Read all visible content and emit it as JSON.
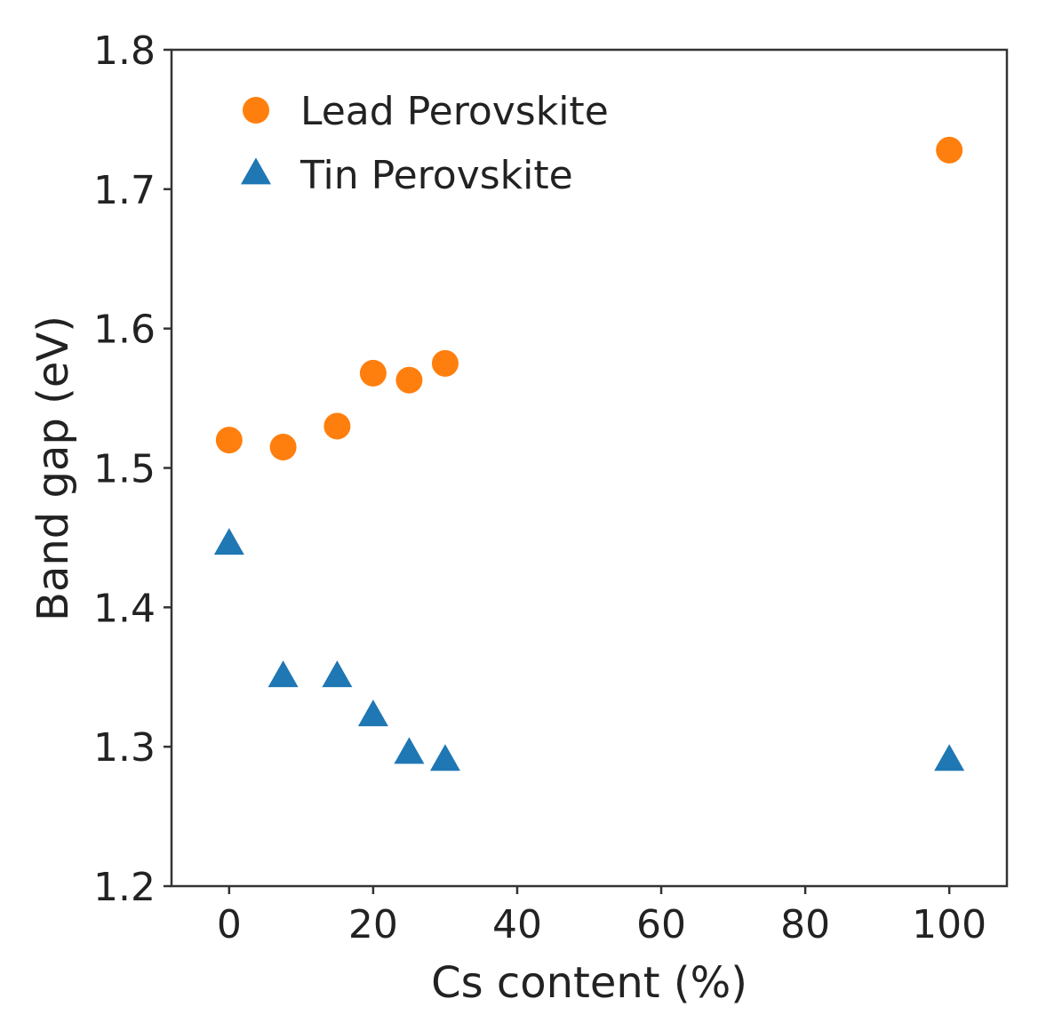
{
  "chart_data": {
    "type": "scatter",
    "xlabel": "Cs content (%)",
    "ylabel": "Band gap (eV)",
    "xlim": [
      -8,
      108
    ],
    "ylim": [
      1.2,
      1.8
    ],
    "xticks": [
      0,
      20,
      40,
      60,
      80,
      100
    ],
    "xtick_labels": [
      "0",
      "20",
      "40",
      "60",
      "80",
      "100"
    ],
    "yticks": [
      1.2,
      1.3,
      1.4,
      1.5,
      1.6,
      1.7,
      1.8
    ],
    "ytick_labels": [
      "1.2",
      "1.3",
      "1.4",
      "1.5",
      "1.6",
      "1.7",
      "1.8"
    ],
    "grid": false,
    "legend": {
      "placement": "top-left"
    },
    "series": [
      {
        "name": "Lead Perovskite",
        "marker": "circle",
        "color": "#ff7f0e",
        "x": [
          0,
          7.5,
          15,
          20,
          25,
          30,
          100
        ],
        "y": [
          1.52,
          1.515,
          1.53,
          1.568,
          1.563,
          1.575,
          1.728
        ]
      },
      {
        "name": "Tin Perovskite",
        "marker": "triangle",
        "color": "#1f77b4",
        "x": [
          0,
          7.5,
          15,
          20,
          25,
          30,
          100
        ],
        "y": [
          1.445,
          1.35,
          1.35,
          1.322,
          1.295,
          1.29,
          1.29
        ]
      }
    ]
  }
}
